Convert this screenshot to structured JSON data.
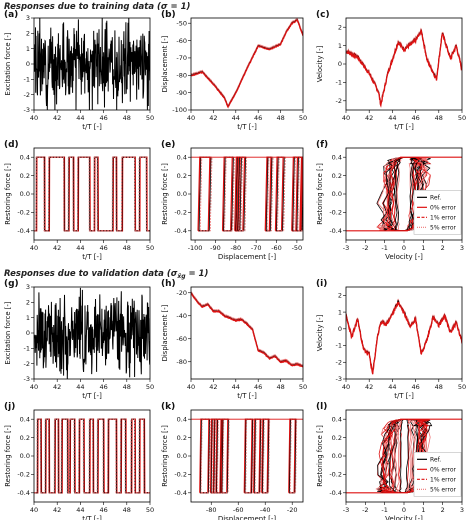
{
  "sections": [
    {
      "title_main": "Responses due to training data (",
      "title_sym": "σ = 1",
      "title_end": ")"
    },
    {
      "title_main": "Responses due to validation data (",
      "title_sym": "σ",
      "title_sub": "ẍg",
      "title_sym2": " = 1",
      "title_end": ")"
    }
  ],
  "colors": {
    "reference": "#000000",
    "prediction": "#dd1111",
    "prediction_light": "#ee7777"
  },
  "legend": {
    "ref": "Ref.",
    "err0": "0% error",
    "err1": "1% error",
    "err5": "5% error"
  },
  "chart_data": [
    {
      "type": "line",
      "panel": "(a)",
      "xlabel": "t/T [-]",
      "ylabel": "Excitation force [-]",
      "xlim": [
        40,
        50
      ],
      "ylim": [
        -3,
        3
      ],
      "xticks": [
        "40",
        "42",
        "44",
        "46",
        "48",
        "50"
      ],
      "yticks": [
        "-3",
        "-2",
        "-1",
        "0",
        "1",
        "2",
        "3"
      ],
      "signal": "excitation",
      "seed": 3
    },
    {
      "type": "line",
      "panel": "(b)",
      "xlabel": "t/T [-]",
      "ylabel": "Displacement [-]",
      "xlim": [
        40,
        50
      ],
      "ylim": [
        -100,
        -47
      ],
      "xticks": [
        "40",
        "42",
        "44",
        "46",
        "48",
        "50"
      ],
      "yticks": [
        "-100",
        "-90",
        "-80",
        "-70",
        "-60",
        "-50"
      ],
      "signal": "trend",
      "keypoints": [
        [
          40,
          -80
        ],
        [
          41,
          -78
        ],
        [
          42,
          -85
        ],
        [
          43,
          -93
        ],
        [
          43.3,
          -98
        ],
        [
          44,
          -90
        ],
        [
          45,
          -76
        ],
        [
          46,
          -63
        ],
        [
          47,
          -65
        ],
        [
          48,
          -62
        ],
        [
          48.5,
          -55
        ],
        [
          49,
          -50
        ],
        [
          49.5,
          -48
        ],
        [
          50,
          -57
        ]
      ],
      "seed": 5
    },
    {
      "type": "line",
      "panel": "(c)",
      "xlabel": "t/T [-]",
      "ylabel": "Velocity [-]",
      "xlim": [
        40,
        50
      ],
      "ylim": [
        -2.5,
        2.5
      ],
      "xticks": [
        "40",
        "42",
        "44",
        "46",
        "48",
        "50"
      ],
      "yticks": [
        "-2",
        "-1",
        "0",
        "1",
        "2"
      ],
      "signal": "velocity",
      "keypoints": [
        [
          40,
          0.7
        ],
        [
          41,
          0.4
        ],
        [
          42,
          -0.5
        ],
        [
          42.8,
          -1.5
        ],
        [
          43,
          -2.2
        ],
        [
          43.6,
          -0.5
        ],
        [
          44.5,
          1.2
        ],
        [
          45,
          0.8
        ],
        [
          46,
          1.3
        ],
        [
          46.5,
          1.8
        ],
        [
          47,
          0.2
        ],
        [
          47.8,
          -0.8
        ],
        [
          48.3,
          1.7
        ],
        [
          49,
          0.3
        ],
        [
          49.5,
          1.0
        ],
        [
          50,
          -0.3
        ]
      ],
      "seed": 7
    },
    {
      "type": "line",
      "panel": "(d)",
      "xlabel": "t/T [-]",
      "ylabel": "Restoring force [-]",
      "xlim": [
        40,
        50
      ],
      "ylim": [
        -0.5,
        0.5
      ],
      "xticks": [
        "40",
        "42",
        "44",
        "46",
        "48",
        "50"
      ],
      "yticks": [
        "-0.4",
        "-0.2",
        "0.0",
        "0.2",
        "0.4"
      ],
      "signal": "square",
      "switch_times": [
        40.2,
        40.9,
        41.3,
        42.6,
        43.0,
        43.4,
        43.8,
        44.8,
        45.2,
        45.5,
        46.8,
        47.1,
        47.6,
        48.7,
        49.1,
        49.7
      ],
      "seed": 9
    },
    {
      "type": "hysteresis",
      "panel": "(e)",
      "xlabel": "Displacement [-]",
      "ylabel": "Restoring force [-]",
      "xlim": [
        -102,
        -47
      ],
      "ylim": [
        -0.5,
        0.5
      ],
      "xticks": [
        "-100",
        "-90",
        "-80",
        "-70",
        "-60",
        "-50"
      ],
      "yticks": [
        "-0.4",
        "-0.2",
        "0.0",
        "0.2",
        "0.4"
      ],
      "loops": [
        [
          -98,
          -93
        ],
        [
          -86,
          -82
        ],
        [
          -80,
          -78
        ],
        [
          -79,
          -76
        ],
        [
          -65,
          -63
        ],
        [
          -60,
          -57
        ],
        [
          -52,
          -48
        ],
        [
          -50,
          -47.5
        ]
      ],
      "seed": 11
    },
    {
      "type": "velocity_force",
      "panel": "(f)",
      "xlabel": "Velocity [-]",
      "ylabel": "Restoring force [-]",
      "xlim": [
        -3,
        3
      ],
      "ylim": [
        -0.5,
        0.5
      ],
      "xticks": [
        "-3",
        "-2",
        "-1",
        "0",
        "1",
        "2",
        "3"
      ],
      "yticks": [
        "-0.4",
        "-0.2",
        "0.0",
        "0.2",
        "0.4"
      ],
      "seed": 13
    },
    {
      "type": "line",
      "panel": "(g)",
      "xlabel": "t/T [-]",
      "ylabel": "Excitation force [-]",
      "xlim": [
        40,
        50
      ],
      "ylim": [
        -3,
        3
      ],
      "xticks": [
        "40",
        "42",
        "44",
        "46",
        "48",
        "50"
      ],
      "yticks": [
        "-3",
        "-2",
        "-1",
        "0",
        "1",
        "2",
        "3"
      ],
      "signal": "excitation",
      "seed": 17
    },
    {
      "type": "line",
      "panel": "(h)",
      "xlabel": "t/T [-]",
      "ylabel": "Displacement [-]",
      "xlim": [
        40,
        50
      ],
      "ylim": [
        -95,
        -15
      ],
      "xticks": [
        "40",
        "42",
        "44",
        "46",
        "48",
        "50"
      ],
      "yticks": [
        "-80",
        "-60",
        "-40",
        "-20"
      ],
      "signal": "trend",
      "keypoints": [
        [
          40,
          -20
        ],
        [
          40.5,
          -27
        ],
        [
          41,
          -32
        ],
        [
          41.5,
          -30
        ],
        [
          42,
          -36
        ],
        [
          42.5,
          -36
        ],
        [
          43,
          -40
        ],
        [
          43.5,
          -42
        ],
        [
          44,
          -44
        ],
        [
          44.5,
          -43
        ],
        [
          45,
          -47
        ],
        [
          45.5,
          -52
        ],
        [
          46,
          -70
        ],
        [
          46.5,
          -72
        ],
        [
          47,
          -77
        ],
        [
          47.5,
          -75
        ],
        [
          48,
          -80
        ],
        [
          48.5,
          -79
        ],
        [
          49,
          -83
        ],
        [
          49.5,
          -82
        ],
        [
          50,
          -84
        ]
      ],
      "seed": 19
    },
    {
      "type": "line",
      "panel": "(i)",
      "xlabel": "t/T [-]",
      "ylabel": "Velocity [-]",
      "xlim": [
        40,
        50
      ],
      "ylim": [
        -3,
        2.5
      ],
      "xticks": [
        "40",
        "42",
        "44",
        "46",
        "48",
        "50"
      ],
      "yticks": [
        "-3",
        "-2",
        "-1",
        "0",
        "1",
        "2"
      ],
      "signal": "velocity",
      "keypoints": [
        [
          40,
          0.8
        ],
        [
          40.5,
          -0.5
        ],
        [
          41,
          0.6
        ],
        [
          41.5,
          -1.2
        ],
        [
          42,
          -1.5
        ],
        [
          42.3,
          -2.7
        ],
        [
          42.7,
          -0.5
        ],
        [
          43,
          0.4
        ],
        [
          43.5,
          0.3
        ],
        [
          44,
          0.9
        ],
        [
          44.5,
          1.6
        ],
        [
          45,
          1.0
        ],
        [
          45.5,
          0.2
        ],
        [
          46,
          0.6
        ],
        [
          46.5,
          -1.5
        ],
        [
          47,
          -0.6
        ],
        [
          47.5,
          0.7
        ],
        [
          48,
          0.2
        ],
        [
          48.5,
          0.8
        ],
        [
          49,
          -0.2
        ],
        [
          49.5,
          0.4
        ],
        [
          50,
          -0.8
        ]
      ],
      "seed": 23
    },
    {
      "type": "line",
      "panel": "(j)",
      "xlabel": "t/T [-]",
      "ylabel": "Restoring force [-]",
      "xlim": [
        40,
        50
      ],
      "ylim": [
        -0.5,
        0.5
      ],
      "xticks": [
        "40",
        "42",
        "44",
        "46",
        "48",
        "50"
      ],
      "yticks": [
        "-0.4",
        "-0.2",
        "0.0",
        "0.2",
        "0.4"
      ],
      "signal": "square",
      "switch_times": [
        40.3,
        40.6,
        41.0,
        41.3,
        41.8,
        42.1,
        42.4,
        42.9,
        43.1,
        43.5,
        43.9,
        44.3,
        44.8,
        45.1,
        45.5,
        46.0,
        46.4,
        47.1,
        47.5,
        47.9,
        48.4,
        48.7,
        49.1,
        49.5
      ],
      "seed": 29
    },
    {
      "type": "hysteresis",
      "panel": "(k)",
      "xlabel": "Displacement [-]",
      "ylabel": "Restoring force [-]",
      "xlim": [
        -95,
        -12
      ],
      "ylim": [
        -0.5,
        0.5
      ],
      "xticks": [
        "-80",
        "-60",
        "-40",
        "-20"
      ],
      "yticks": [
        "-0.4",
        "-0.2",
        "0.0",
        "0.2",
        "0.4"
      ],
      "loops": [
        [
          -88,
          -82
        ],
        [
          -80,
          -76
        ],
        [
          -78,
          -73
        ],
        [
          -72,
          -68
        ],
        [
          -55,
          -50
        ],
        [
          -48,
          -44
        ],
        [
          -42,
          -38
        ],
        [
          -22,
          -18
        ]
      ],
      "seed": 31
    },
    {
      "type": "velocity_force",
      "panel": "(l)",
      "xlabel": "Velocity [-]",
      "ylabel": "Restoring force [-]",
      "xlim": [
        -3,
        3
      ],
      "ylim": [
        -0.5,
        0.5
      ],
      "xticks": [
        "-3",
        "-2",
        "-1",
        "0",
        "1",
        "2",
        "3"
      ],
      "yticks": [
        "-0.4",
        "-0.2",
        "0.0",
        "0.2",
        "0.4"
      ],
      "seed": 37
    }
  ]
}
